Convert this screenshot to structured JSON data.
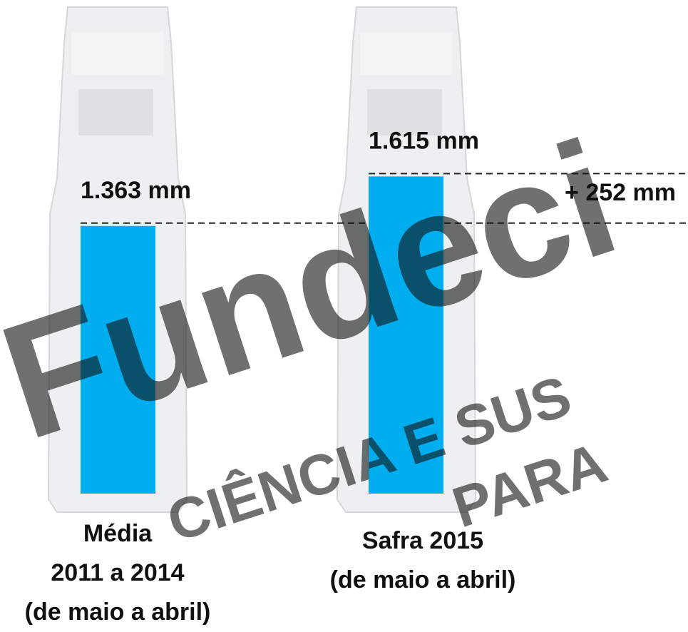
{
  "chart_data": {
    "type": "bar",
    "categories": [
      [
        "Média",
        "2011 a 2014",
        "(de maio a abril)"
      ],
      [
        "Safra 2015",
        "(de maio a abril)"
      ]
    ],
    "values": [
      1363,
      1615
    ],
    "value_labels": [
      "1.363 mm",
      "1.615 mm"
    ],
    "color": "#00aeef",
    "ylim": [
      0,
      1700
    ],
    "annotation": "+ 252 mm",
    "watermark": [
      "Fundeci",
      "CIÊNCIA E SUS",
      "PARA"
    ]
  }
}
